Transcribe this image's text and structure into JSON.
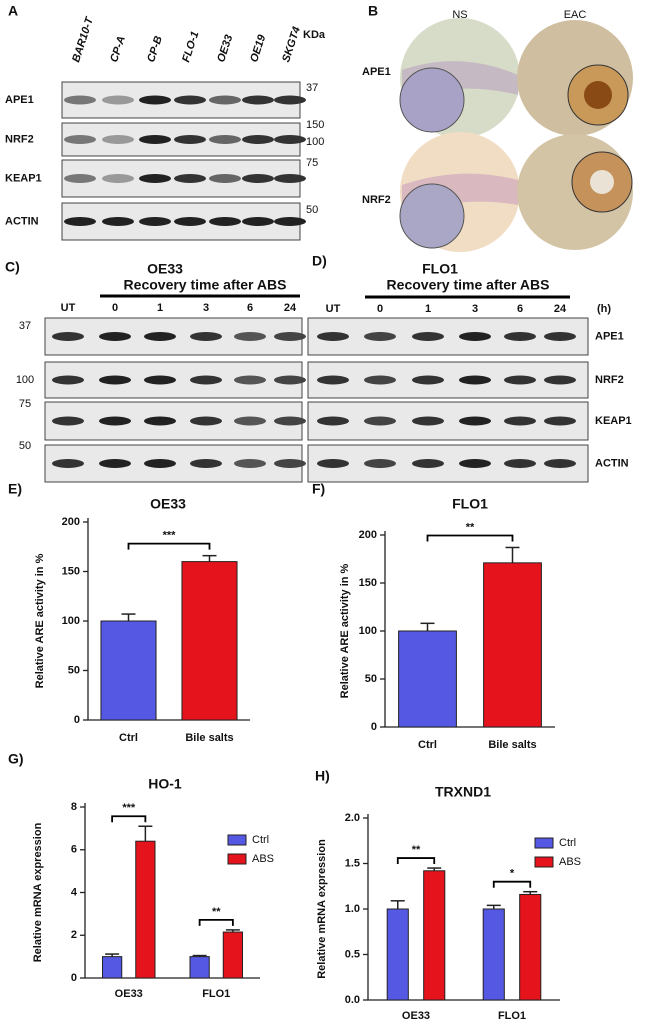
{
  "figure": {
    "panel_a": {
      "label": "A",
      "lanes": [
        "BAR10-T",
        "CP-A",
        "CP-B",
        "FLO-1",
        "OE33",
        "OE19",
        "SKGT4"
      ],
      "unit": "KDa",
      "proteins": [
        "APE1",
        "NRF2",
        "KEAP1",
        "ACTIN"
      ],
      "markers": [
        "37",
        "150",
        "100",
        "75",
        "50"
      ]
    },
    "panel_b": {
      "label": "B",
      "columns": [
        "NS",
        "EAC"
      ],
      "rows": [
        "APE1",
        "NRF2"
      ]
    },
    "panel_c": {
      "label": "C)",
      "title": "OE33",
      "subtitle": "Recovery time after ABS",
      "lanes": [
        "UT",
        "0",
        "1",
        "3",
        "6",
        "24"
      ],
      "markers": [
        "37",
        "100",
        "75",
        "50"
      ]
    },
    "panel_d": {
      "label": "D)",
      "title": "FLO1",
      "subtitle": "Recovery time after ABS",
      "lanes": [
        "UT",
        "0",
        "1",
        "3",
        "6",
        "24"
      ],
      "unit": "(h)",
      "proteins": [
        "APE1",
        "NRF2",
        "KEAP1",
        "ACTIN"
      ]
    }
  },
  "chart_data": [
    {
      "type": "bar",
      "panel": "E)",
      "title": "OE33",
      "ylabel": "Relative ARE activity in %",
      "categories": [
        "Ctrl",
        "Bile salts"
      ],
      "values": [
        100,
        160
      ],
      "errors": [
        7,
        6
      ],
      "colors": [
        "#5558e3",
        "#e5131b"
      ],
      "significance": "***",
      "ylim": [
        0,
        200
      ],
      "yticks": [
        0,
        50,
        100,
        150,
        200
      ]
    },
    {
      "type": "bar",
      "panel": "F)",
      "title": "FLO1",
      "ylabel": "Relative ARE activity in %",
      "categories": [
        "Ctrl",
        "Bile salts"
      ],
      "values": [
        100,
        171
      ],
      "errors": [
        8,
        16
      ],
      "colors": [
        "#5558e3",
        "#e5131b"
      ],
      "significance": "**",
      "ylim": [
        0,
        200
      ],
      "yticks": [
        0,
        50,
        100,
        150,
        200
      ]
    },
    {
      "type": "grouped-bar",
      "panel": "G)",
      "title": "HO-1",
      "ylabel": "Relative mRNA expression",
      "categories": [
        "OE33",
        "FLO1"
      ],
      "series": [
        {
          "name": "Ctrl",
          "color": "#5558e3",
          "values": [
            1.0,
            1.0
          ],
          "errors": [
            0.12,
            0.05
          ]
        },
        {
          "name": "ABS",
          "color": "#e5131b",
          "values": [
            6.4,
            2.15
          ],
          "errors": [
            0.7,
            0.1
          ]
        }
      ],
      "significance": [
        "***",
        "**"
      ],
      "ylim": [
        0,
        8
      ],
      "yticks": [
        0,
        2,
        4,
        6,
        8
      ]
    },
    {
      "type": "grouped-bar",
      "panel": "H)",
      "title": "TRXND1",
      "ylabel": "Relative mRNA expression",
      "categories": [
        "OE33",
        "FLO1"
      ],
      "series": [
        {
          "name": "Ctrl",
          "color": "#5558e3",
          "values": [
            1.0,
            1.0
          ],
          "errors": [
            0.09,
            0.04
          ]
        },
        {
          "name": "ABS",
          "color": "#e5131b",
          "values": [
            1.42,
            1.16
          ],
          "errors": [
            0.03,
            0.03
          ]
        }
      ],
      "significance": [
        "**",
        "*"
      ],
      "ylim": [
        0,
        2
      ],
      "yticks": [
        {
          "value": 0,
          "label": "0.0"
        },
        0.5,
        {
          "value": 1,
          "label": "1.0"
        },
        1.5,
        {
          "value": 2,
          "label": "2.0"
        }
      ]
    }
  ]
}
